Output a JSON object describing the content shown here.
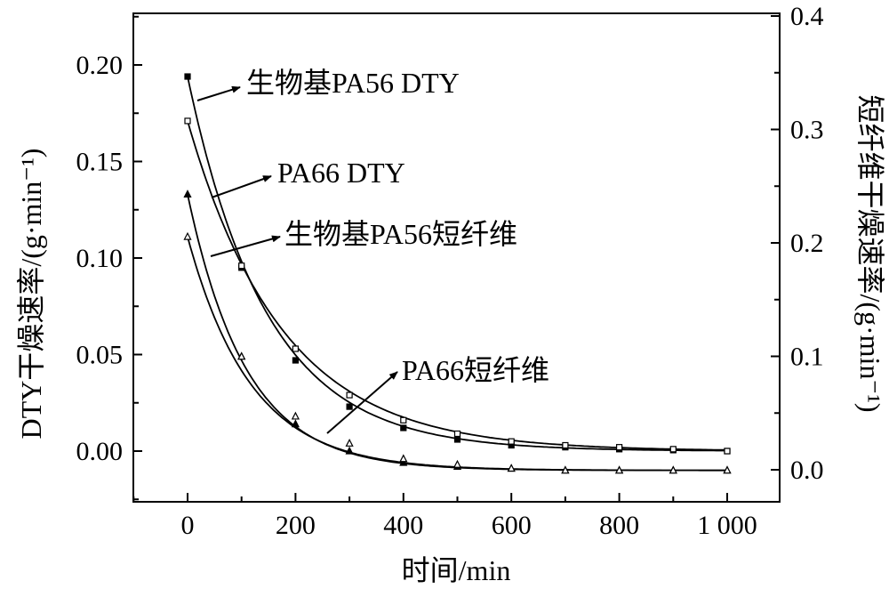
{
  "chart_data": {
    "type": "line",
    "xlabel": "时间/min",
    "ylabel_left": "DTY干燥速率/(g·min⁻¹)",
    "ylabel_right": "短纤维干燥速率/(g·min⁻¹)",
    "x_ticks": [
      "0",
      "200",
      "400",
      "600",
      "800",
      "1 000"
    ],
    "x_tick_values": [
      0,
      200,
      400,
      600,
      800,
      1000
    ],
    "y_left_ticks": [
      "0.00",
      "0.05",
      "0.10",
      "0.15",
      "0.20"
    ],
    "y_left_tick_values": [
      0,
      0.05,
      0.1,
      0.15,
      0.2
    ],
    "y_right_ticks": [
      "0.0",
      "0.1",
      "0.2",
      "0.3",
      "0.4"
    ],
    "y_right_tick_values": [
      0,
      0.1,
      0.2,
      0.3,
      0.4
    ],
    "xlim": [
      -100,
      1050
    ],
    "ylim_left": [
      -0.025,
      0.225
    ],
    "ylim_right": [
      -0.025,
      0.4
    ],
    "grid": false,
    "series": [
      {
        "name": "生物基PA56 DTY",
        "axis": "left",
        "marker": "filled-square",
        "x": [
          0,
          100,
          200,
          300,
          400,
          500,
          600,
          700,
          800,
          900,
          1000
        ],
        "y": [
          0.194,
          0.095,
          0.047,
          0.023,
          0.012,
          0.006,
          0.003,
          0.002,
          0.001,
          0.0005,
          0.0
        ],
        "fit": {
          "type": "exp",
          "a": 0.194,
          "k": 0.0068
        }
      },
      {
        "name": "PA66 DTY",
        "axis": "left",
        "marker": "open-square",
        "x": [
          0,
          100,
          200,
          300,
          400,
          500,
          600,
          700,
          800,
          900,
          1000
        ],
        "y": [
          0.171,
          0.096,
          0.053,
          0.029,
          0.016,
          0.009,
          0.005,
          0.003,
          0.002,
          0.001,
          0.0
        ],
        "fit": {
          "type": "exp",
          "a": 0.171,
          "k": 0.0057
        }
      },
      {
        "name": "生物基PA56短纤维",
        "axis": "left",
        "marker": "filled-triangle",
        "x": [
          0,
          100,
          200,
          300,
          400,
          500,
          600,
          700,
          800,
          900,
          1000
        ],
        "y": [
          0.133,
          0.049,
          0.014,
          0.0,
          -0.006,
          -0.008,
          -0.009,
          -0.01,
          -0.01,
          -0.01,
          -0.01
        ],
        "fit": {
          "type": "exp-offset",
          "a": 0.143,
          "k": 0.0092,
          "c": -0.01
        }
      },
      {
        "name": "PA66短纤维",
        "axis": "left",
        "marker": "open-triangle",
        "x": [
          0,
          100,
          200,
          300,
          400,
          500,
          600,
          700,
          800,
          900,
          1000
        ],
        "y": [
          0.111,
          0.049,
          0.018,
          0.004,
          -0.004,
          -0.007,
          -0.009,
          -0.01,
          -0.01,
          -0.01,
          -0.01
        ],
        "fit": {
          "type": "exp-offset",
          "a": 0.121,
          "k": 0.0085,
          "c": -0.01
        }
      }
    ],
    "annotations": [
      "生物基PA56 DTY",
      "PA66 DTY",
      "生物基PA56短纤维",
      "PA66短纤维"
    ]
  }
}
